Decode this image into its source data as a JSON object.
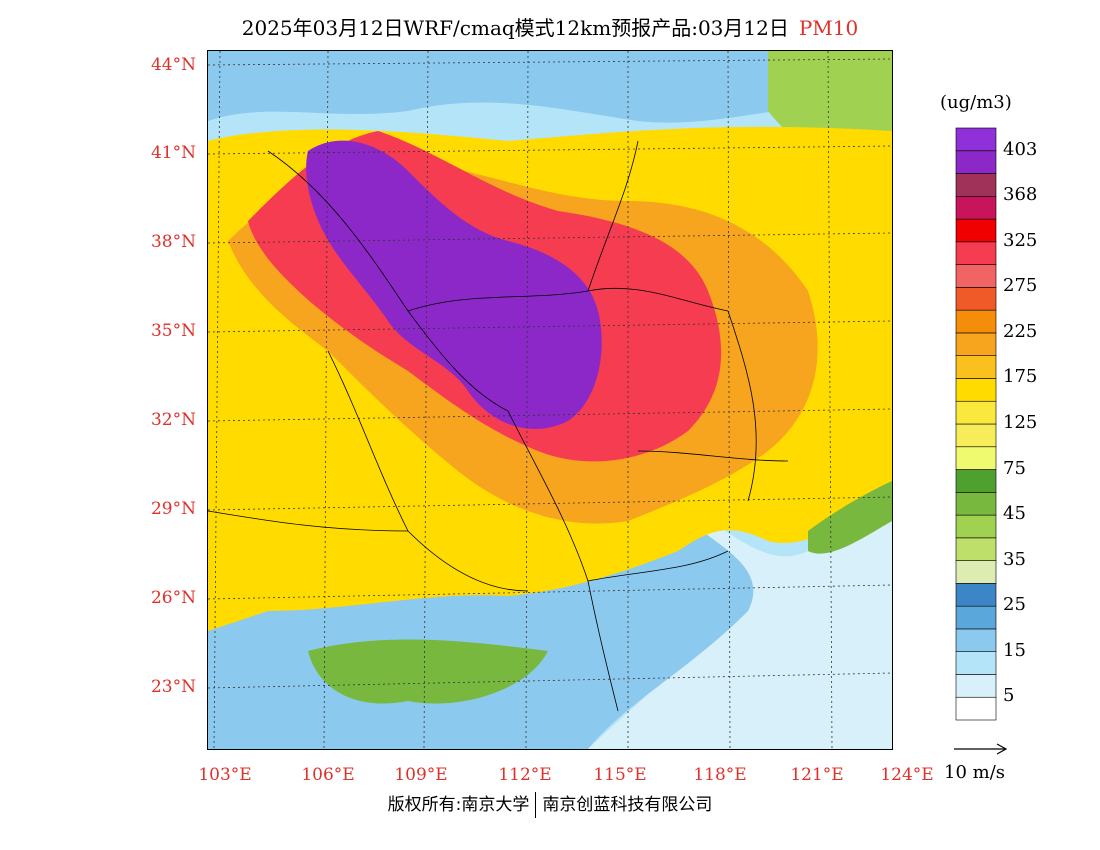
{
  "title": {
    "main": "2025年03月12日WRF/cmaq模式12km预报产品:03月12日",
    "pollutant": "PM10"
  },
  "map": {
    "lat_labels": [
      "44°N",
      "41°N",
      "38°N",
      "35°N",
      "32°N",
      "29°N",
      "26°N",
      "23°N"
    ],
    "lon_labels": [
      "103°E",
      "106°E",
      "109°E",
      "112°E",
      "115°E",
      "118°E",
      "121°E",
      "124°E"
    ]
  },
  "colorbar": {
    "unit": "(ug/m3)",
    "colors": [
      "#ffffff",
      "#d8f0fa",
      "#b4e4f7",
      "#8cc9ee",
      "#5aa7dc",
      "#3d86c6",
      "#dcecb2",
      "#bedf6a",
      "#a0d150",
      "#78b83e",
      "#50a030",
      "#f0fa6e",
      "#f7ed5a",
      "#fbe83c",
      "#ffdb00",
      "#fac01e",
      "#f7a41e",
      "#f58c0a",
      "#ef5a28",
      "#f06464",
      "#f53c50",
      "#f00000",
      "#c8145a",
      "#a0325a",
      "#8c28c8",
      "#9030d8"
    ],
    "labels": [
      "5",
      "15",
      "25",
      "35",
      "45",
      "75",
      "125",
      "175",
      "225",
      "275",
      "325",
      "368",
      "403"
    ]
  },
  "wind_reference": {
    "label": "10 m/s"
  },
  "footer": {
    "copyright": "版权所有:南京大学",
    "company": "南京创蓝科技有限公司"
  }
}
